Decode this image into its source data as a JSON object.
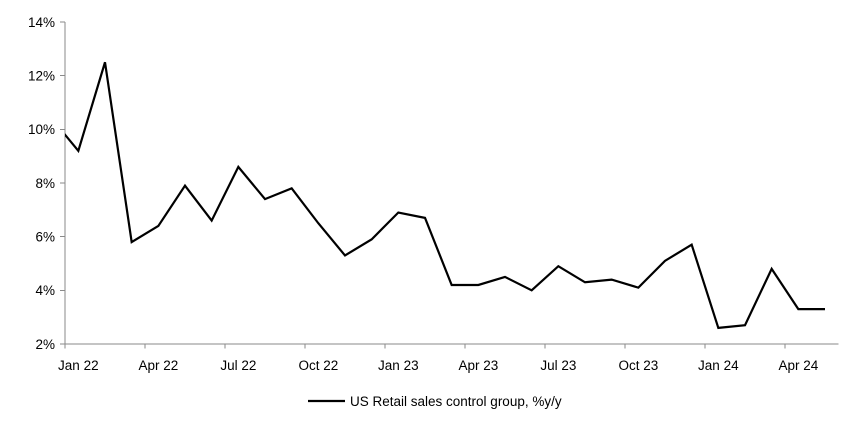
{
  "chart_data": {
    "type": "line",
    "title": "",
    "xlabel": "",
    "ylabel": "",
    "x": [
      "Dec 21",
      "Jan 22",
      "Feb 22",
      "Mar 22",
      "Apr 22",
      "May 22",
      "Jun 22",
      "Jul 22",
      "Aug 22",
      "Sep 22",
      "Oct 22",
      "Nov 22",
      "Dec 22",
      "Jan 23",
      "Feb 23",
      "Mar 23",
      "Apr 23",
      "May 23",
      "Jun 23",
      "Jul 23",
      "Aug 23",
      "Sep 23",
      "Oct 23",
      "Nov 23",
      "Dec 23",
      "Jan 24",
      "Feb 24",
      "Mar 24",
      "Apr 24",
      "May 24"
    ],
    "series": [
      {
        "name": "US Retail sales control group, %y/y",
        "color": "#000000",
        "values": [
          10.4,
          9.2,
          12.5,
          5.8,
          6.4,
          7.9,
          6.6,
          8.6,
          7.4,
          7.8,
          6.5,
          5.3,
          5.9,
          6.9,
          6.7,
          4.2,
          4.2,
          4.5,
          4.0,
          4.9,
          4.3,
          4.4,
          4.1,
          5.1,
          5.7,
          2.6,
          2.7,
          4.8,
          3.3,
          3.3
        ]
      }
    ],
    "ylim": [
      2,
      14
    ],
    "ytick_step": 2,
    "ytick_labels": [
      "2%",
      "4%",
      "6%",
      "8%",
      "10%",
      "12%",
      "14%"
    ],
    "xtick_labels": [
      "Jan 22",
      "Apr 22",
      "Jul 22",
      "Oct 22",
      "Jan 23",
      "Apr 23",
      "Jul 23",
      "Oct 23",
      "Jan 24",
      "Apr 24"
    ],
    "xtick_interval_months": 3,
    "grid": false,
    "legend_position": "bottom-center",
    "first_point_clipped_at_left_axis": true
  },
  "legend": {
    "label": "US Retail sales control group, %y/y"
  },
  "colors": {
    "line": "#000000",
    "axis": "#8a8a8a",
    "text": "#000000",
    "background": "#ffffff"
  }
}
